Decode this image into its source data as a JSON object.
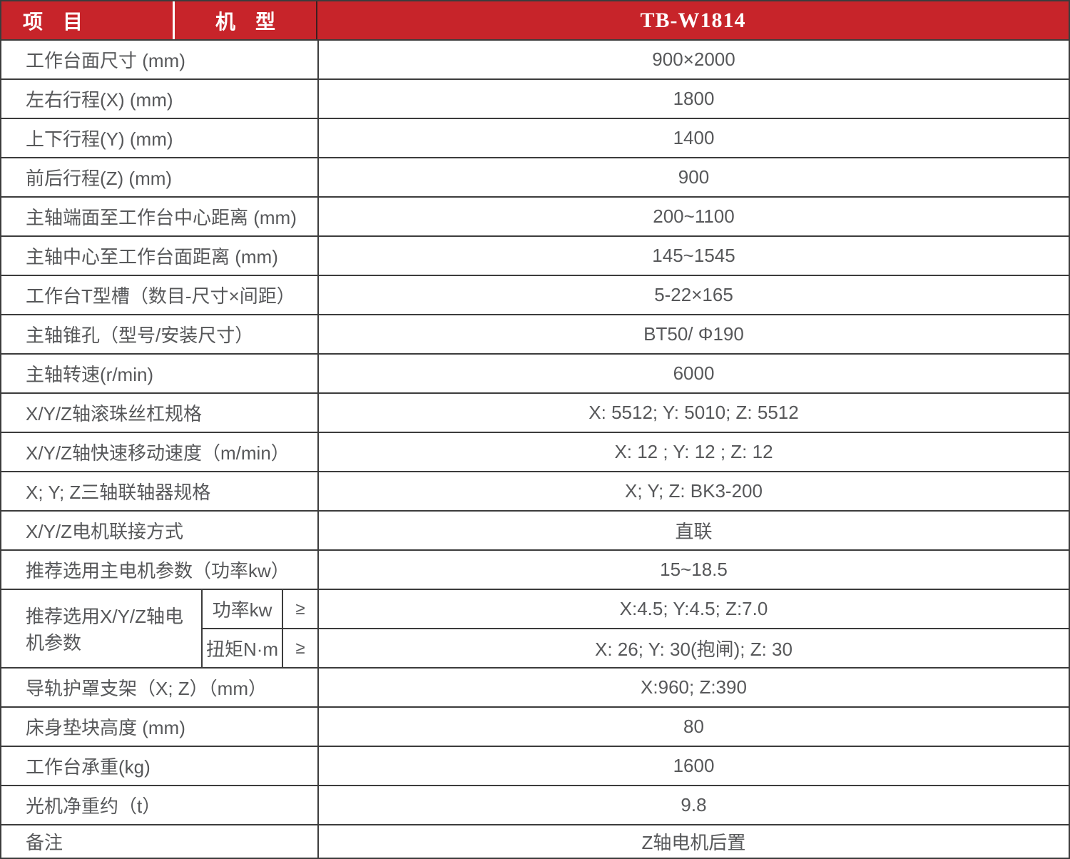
{
  "colors": {
    "header_red": "#C7242A",
    "border_dark": "#3c3c3c",
    "text_gray": "#57585a",
    "header_text": "#ffffff"
  },
  "header": {
    "col_item": "项　目",
    "col_model": "机　型",
    "model": "TB-W1814"
  },
  "rows_top": [
    {
      "label": "工作台面尺寸 (mm)",
      "value": "900×2000"
    },
    {
      "label": "左右行程(X) (mm)",
      "value": "1800"
    },
    {
      "label": "上下行程(Y) (mm)",
      "value": "1400"
    },
    {
      "label": "前后行程(Z) (mm)",
      "value": "900"
    },
    {
      "label": "主轴端面至工作台中心距离 (mm)",
      "value": "200~1100"
    },
    {
      "label": "主轴中心至工作台面距离 (mm)",
      "value": "145~1545"
    },
    {
      "label": "工作台T型槽（数目-尺寸×间距）",
      "value": "5-22×165"
    },
    {
      "label": "主轴锥孔（型号/安装尺寸）",
      "value": "BT50/ Φ190"
    },
    {
      "label": "主轴转速(r/min)",
      "value": "6000"
    },
    {
      "label": "X/Y/Z轴滚珠丝杠规格",
      "value": "X: 5512; Y: 5010; Z: 5512"
    },
    {
      "label": "X/Y/Z轴快速移动速度（m/min）",
      "value": "X: 12 ; Y: 12 ; Z: 12"
    },
    {
      "label": "X; Y; Z三轴联轴器规格",
      "value": "X; Y; Z: BK3-200"
    },
    {
      "label": "X/Y/Z电机联接方式",
      "value": "直联"
    },
    {
      "label": "推荐选用主电机参数（功率kw）",
      "value": "15~18.5"
    }
  ],
  "motor_group": {
    "label": "推荐选用X/Y/Z轴电机参数",
    "sub_rows": [
      {
        "param": "功率kw",
        "operator": "≥",
        "value": "X:4.5; Y:4.5; Z:7.0"
      },
      {
        "param": "扭矩N·m",
        "operator": "≥",
        "value": "X: 26; Y: 30(抱闸); Z: 30"
      }
    ]
  },
  "rows_bottom": [
    {
      "label": "导轨护罩支架（X; Z）（mm）",
      "value": "X:960; Z:390"
    },
    {
      "label": "床身垫块高度 (mm)",
      "value": "80"
    },
    {
      "label": "工作台承重(kg)",
      "value": "1600"
    },
    {
      "label": "光机净重约（t）",
      "value": "9.8"
    },
    {
      "label": "备注",
      "value": "Z轴电机后置"
    }
  ]
}
